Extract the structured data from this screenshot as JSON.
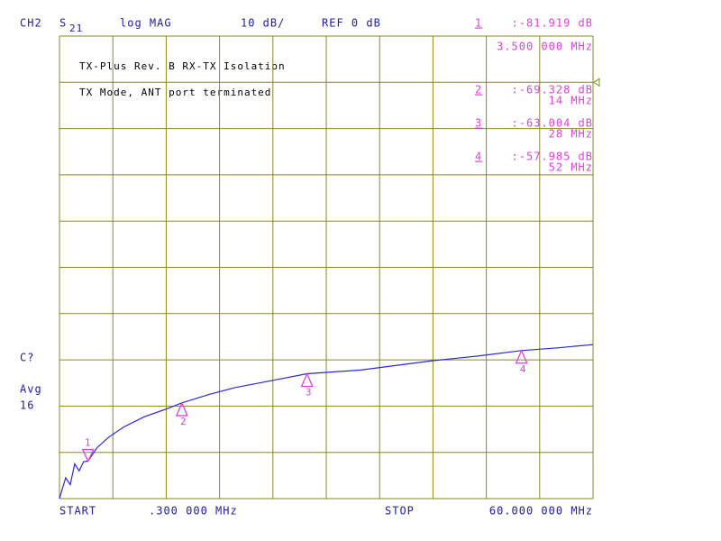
{
  "header": {
    "channel": "CH2",
    "param": "S",
    "param_sub": "21",
    "format": "log MAG",
    "scale": "10 dB/",
    "ref": "REF 0 dB"
  },
  "title_lines": [
    "TX-Plus Rev. B RX-TX Isolation",
    "TX Mode, ANT port terminated"
  ],
  "side": [
    "C?",
    "Avg",
    "16"
  ],
  "footer": {
    "start": "START",
    "start_freq": ".300 000 MHz",
    "stop": "STOP",
    "stop_freq": "60.000 000 MHz"
  },
  "plot": {
    "xlim": [
      0.3,
      60
    ],
    "ylim": [
      -90,
      10
    ],
    "ref_level": 0,
    "trace_color": "#2a2ad0",
    "grid_color": "#8a8a20",
    "marker_color": "#e040e0",
    "text_color": "#2020a0"
  },
  "trace": {
    "x": [
      0.3,
      0.6,
      1,
      1.5,
      2,
      2.5,
      3,
      3.5,
      4.5,
      5.75,
      7.5,
      9.8,
      12,
      14,
      17,
      19.9,
      24,
      28,
      34,
      42,
      47,
      52,
      56,
      60
    ],
    "y": [
      -90,
      -88,
      -85.5,
      -87,
      -82.5,
      -84,
      -82,
      -81.9,
      -79,
      -76.8,
      -74.5,
      -72.3,
      -70.8,
      -69.3,
      -67.5,
      -66,
      -64.5,
      -63,
      -62.2,
      -60.2,
      -59.2,
      -58,
      -57.4,
      -56.7
    ]
  },
  "markers": [
    {
      "id": "1",
      "value": -81.919,
      "value_label": ":-81.919 dB",
      "x": 3.5,
      "x_label": "3.500 000 MHz"
    },
    {
      "id": "2",
      "value": -69.328,
      "value_label": ":-69.328 dB",
      "x": 14,
      "x_label": "14 MHz"
    },
    {
      "id": "3",
      "value": -63.004,
      "value_label": ":-63.004 dB",
      "x": 28,
      "x_label": "28 MHz"
    },
    {
      "id": "4",
      "value": -57.985,
      "value_label": ":-57.985 dB",
      "x": 52,
      "x_label": "52 MHz"
    }
  ]
}
